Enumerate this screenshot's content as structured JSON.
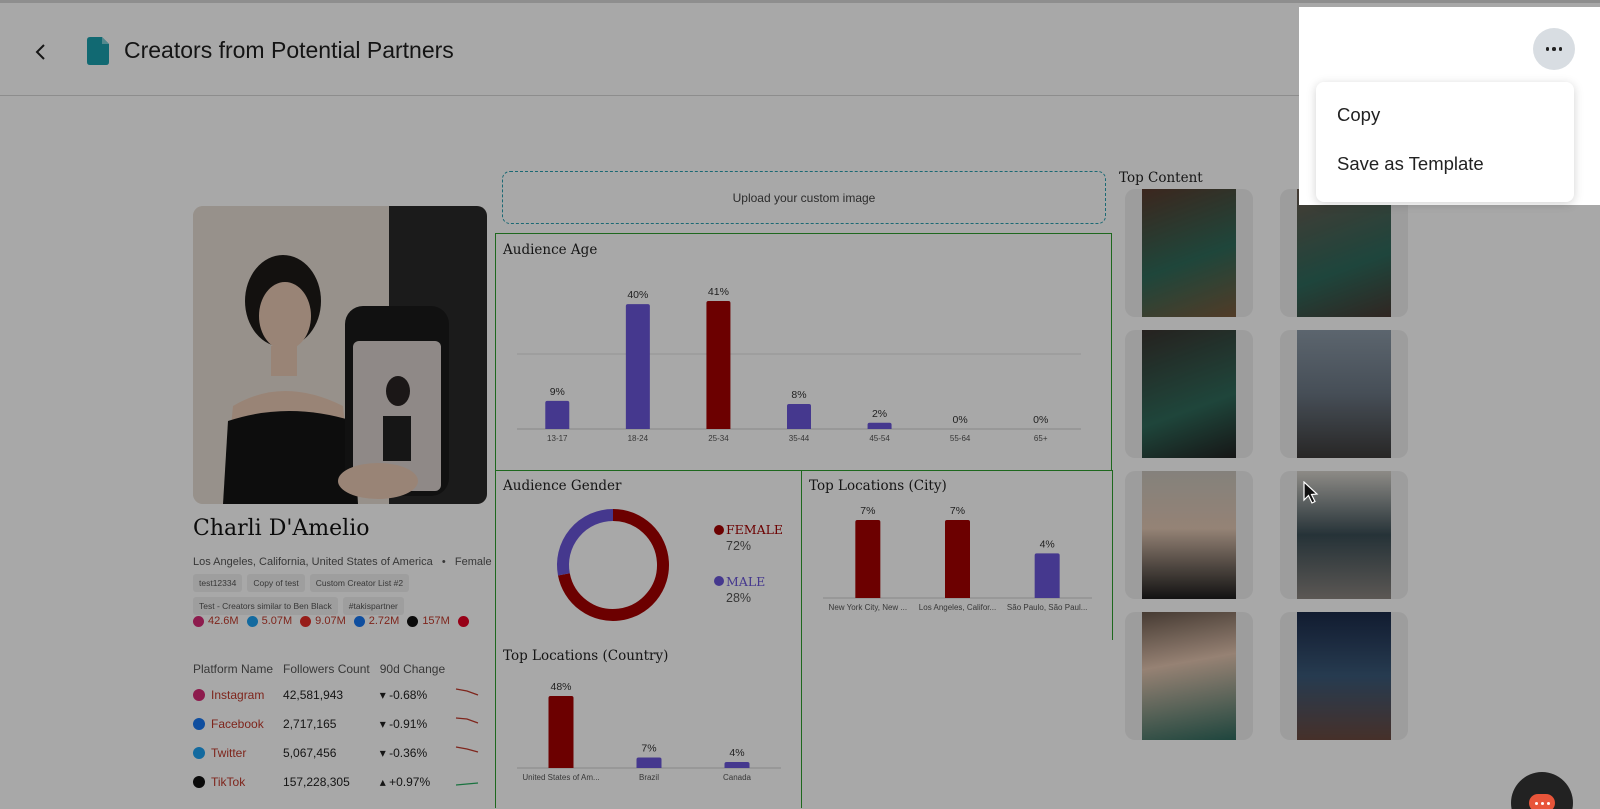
{
  "header": {
    "title": "Creators from Potential Partners",
    "back_icon": "chevron-left-icon",
    "doc_icon": "document-icon",
    "doc_icon_color": "#1aa0ad"
  },
  "menu": {
    "more_icon": "more-horizontal-icon",
    "items": [
      {
        "label": "Copy"
      },
      {
        "label": "Save as Template"
      }
    ]
  },
  "creator": {
    "name": "Charli D'Amelio",
    "location": "Los Angeles, California, United States of America",
    "separator": "•",
    "gender": "Female",
    "tags": [
      "test12334",
      "Copy of test",
      "Custom Creator List #2",
      "Test - Creators similar to Ben Black",
      "#takispartner"
    ],
    "stats": [
      {
        "icon": "instagram-icon",
        "value": "42.6M",
        "color": "#d62976"
      },
      {
        "icon": "twitter-icon",
        "value": "5.07M",
        "color": "#1da1f2"
      },
      {
        "icon": "youtube-icon",
        "value": "9.07M",
        "color": "#e52d27"
      },
      {
        "icon": "facebook-icon",
        "value": "2.72M",
        "color": "#1877f2"
      },
      {
        "icon": "tiktok-icon",
        "value": "157M",
        "color": "#111111"
      },
      {
        "icon": "pinterest-icon",
        "value": "",
        "color": "#e60023"
      }
    ]
  },
  "platforms": {
    "headers": [
      "Platform Name",
      "Followers Count",
      "90d Change"
    ],
    "rows": [
      {
        "name": "Instagram",
        "icon": "instagram-icon",
        "followers": "42,581,943",
        "change": "-0.68%",
        "trend": "down"
      },
      {
        "name": "Facebook",
        "icon": "facebook-icon",
        "followers": "2,717,165",
        "change": "-0.91%",
        "trend": "down"
      },
      {
        "name": "Twitter",
        "icon": "twitter-icon",
        "followers": "5,067,456",
        "change": "-0.36%",
        "trend": "down"
      },
      {
        "name": "TikTok",
        "icon": "tiktok-icon",
        "followers": "157,228,305",
        "change": "+0.97%",
        "trend": "up"
      }
    ]
  },
  "upload": {
    "label": "Upload your custom image"
  },
  "top_content": {
    "title": "Top Content"
  },
  "colors": {
    "female": "#a50000",
    "male": "#6a55d8",
    "panel_border": "#2e9e2e",
    "accent": "#1aa0ad"
  },
  "chart_data": [
    {
      "type": "bar",
      "title": "Audience Age",
      "categories": [
        "13-17",
        "18-24",
        "25-34",
        "35-44",
        "45-54",
        "55-64",
        "65+"
      ],
      "values": [
        9,
        40,
        41,
        8,
        2,
        0,
        0
      ],
      "labels": [
        "9%",
        "40%",
        "41%",
        "8%",
        "2%",
        "0%",
        "0%"
      ],
      "bar_colors": [
        "#6a55d8",
        "#6a55d8",
        "#a50000",
        "#6a55d8",
        "#6a55d8",
        "#6a55d8",
        "#6a55d8"
      ],
      "ylim": [
        0,
        41
      ]
    },
    {
      "type": "pie",
      "title": "Audience Gender",
      "slices": [
        {
          "name": "FEMALE",
          "value": 72,
          "label": "72%",
          "color": "#a50000"
        },
        {
          "name": "MALE",
          "value": 28,
          "label": "28%",
          "color": "#6a55d8"
        }
      ]
    },
    {
      "type": "bar",
      "title": "Top Locations (City)",
      "categories": [
        "New York City, New ...",
        "Los Angeles, Califor...",
        "São Paulo, São Paul..."
      ],
      "values": [
        7,
        7,
        4
      ],
      "labels": [
        "7%",
        "7%",
        "4%"
      ],
      "bar_colors": [
        "#a50000",
        "#a50000",
        "#6a55d8"
      ],
      "ylim": [
        0,
        7
      ]
    },
    {
      "type": "bar",
      "title": "Top Locations (Country)",
      "categories": [
        "United States of Am...",
        "Brazil",
        "Canada"
      ],
      "values": [
        48,
        7,
        4
      ],
      "labels": [
        "48%",
        "7%",
        "4%"
      ],
      "bar_colors": [
        "#a50000",
        "#6a55d8",
        "#6a55d8"
      ],
      "ylim": [
        0,
        48
      ]
    }
  ]
}
